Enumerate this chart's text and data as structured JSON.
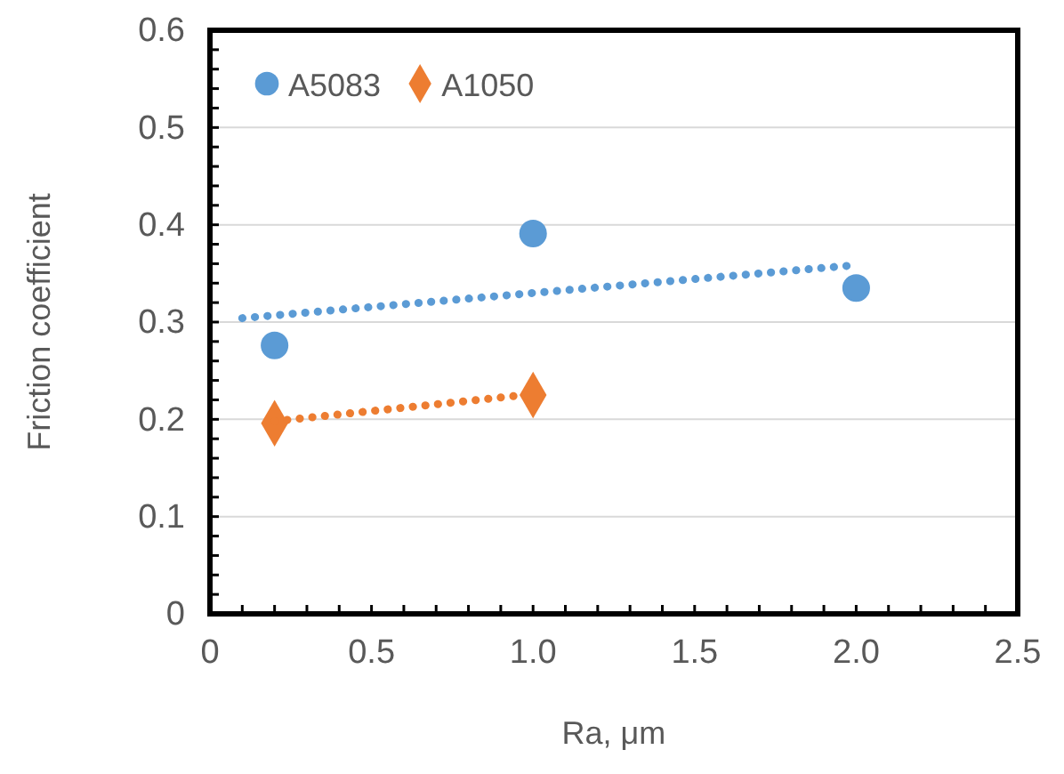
{
  "chart_data": {
    "type": "scatter",
    "xlabel": "Ra, μm",
    "ylabel": "Friction coefficient",
    "xlim": [
      0,
      2.5
    ],
    "ylim": [
      0,
      0.6
    ],
    "xticks": [
      0,
      {
        "value": 0.1,
        "label": null
      },
      {
        "value": 0.2,
        "label": null
      },
      {
        "value": 0.3,
        "label": null
      },
      {
        "value": 0.4,
        "label": null
      },
      0.5,
      {
        "value": 0.6,
        "label": null
      },
      {
        "value": 0.7,
        "label": null
      },
      {
        "value": 0.8,
        "label": null
      },
      {
        "value": 0.9,
        "label": null
      },
      {
        "value": 1,
        "label": "1.0"
      },
      {
        "value": 1.1,
        "label": null
      },
      {
        "value": 1.2,
        "label": null
      },
      {
        "value": 1.3,
        "label": null
      },
      {
        "value": 1.4,
        "label": null
      },
      1.5,
      {
        "value": 1.6,
        "label": null
      },
      {
        "value": 1.7,
        "label": null
      },
      {
        "value": 1.8,
        "label": null
      },
      {
        "value": 1.9,
        "label": null
      },
      {
        "value": 2,
        "label": "2.0"
      },
      {
        "value": 2.1,
        "label": null
      },
      {
        "value": 2.2,
        "label": null
      },
      {
        "value": 2.3,
        "label": null
      },
      {
        "value": 2.4,
        "label": null
      },
      2.5
    ],
    "yticks": [
      0,
      {
        "value": 0.02,
        "label": null
      },
      {
        "value": 0.04,
        "label": null
      },
      {
        "value": 0.06,
        "label": null
      },
      {
        "value": 0.08,
        "label": null
      },
      0.1,
      {
        "value": 0.12,
        "label": null
      },
      {
        "value": 0.14,
        "label": null
      },
      {
        "value": 0.16,
        "label": null
      },
      {
        "value": 0.18,
        "label": null
      },
      0.2,
      {
        "value": 0.22,
        "label": null
      },
      {
        "value": 0.24,
        "label": null
      },
      {
        "value": 0.26,
        "label": null
      },
      {
        "value": 0.28,
        "label": null
      },
      0.3,
      {
        "value": 0.32,
        "label": null
      },
      {
        "value": 0.34,
        "label": null
      },
      {
        "value": 0.36,
        "label": null
      },
      {
        "value": 0.38,
        "label": null
      },
      0.4,
      {
        "value": 0.42,
        "label": null
      },
      {
        "value": 0.44,
        "label": null
      },
      {
        "value": 0.46,
        "label": null
      },
      {
        "value": 0.48,
        "label": null
      },
      0.5,
      {
        "value": 0.52,
        "label": null
      },
      {
        "value": 0.54,
        "label": null
      },
      {
        "value": 0.56,
        "label": null
      },
      {
        "value": 0.58,
        "label": null
      },
      0.6
    ],
    "grid": "y",
    "legend": "top left",
    "series": [
      {
        "name": "A5083",
        "color": "#5b9bd5",
        "marker": "circle",
        "x": [
          0.2,
          1,
          2
        ],
        "values": [
          0.276,
          0.391,
          0.335
        ]
      },
      {
        "name": "A1050",
        "color": "#ed7d31",
        "marker": "diamond",
        "x": [
          0.2,
          1
        ],
        "values": [
          0.196,
          0.225
        ]
      },
      {
        "type": "line",
        "color": "#5b9bd5",
        "line_style": "dotted",
        "marker": "none",
        "x": [
          0.1,
          1.98
        ],
        "values": [
          0.304,
          0.358
        ]
      },
      {
        "type": "line",
        "color": "#ed7d31",
        "line_style": "dotted",
        "marker": "none",
        "x": [
          0.2,
          1
        ],
        "values": [
          0.198,
          0.226
        ]
      }
    ]
  }
}
